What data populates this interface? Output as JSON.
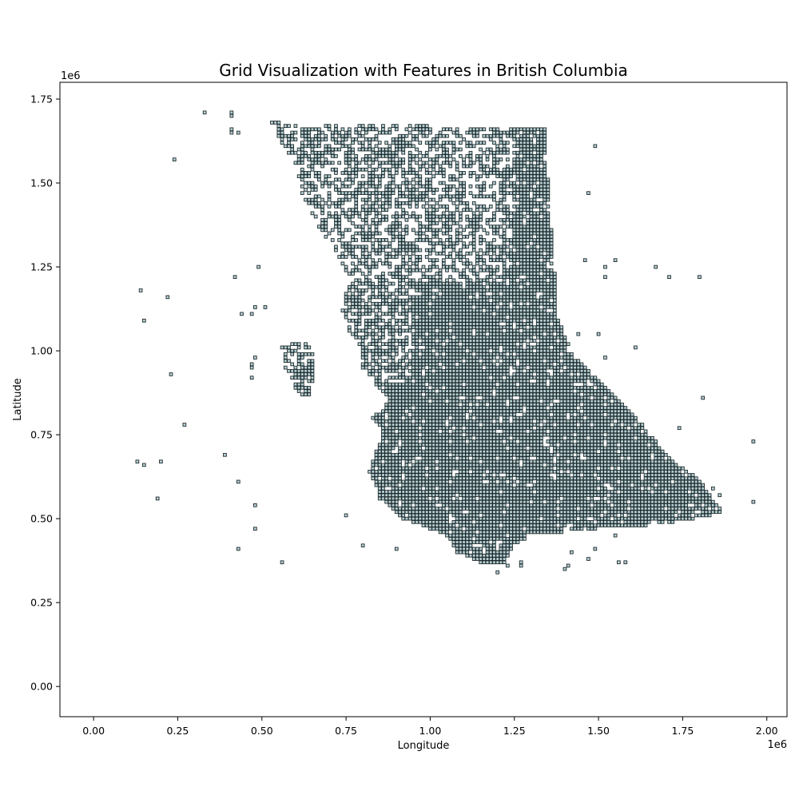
{
  "chart_data": {
    "type": "scatter",
    "title": "Grid Visualization with Features in British Columbia",
    "xlabel": "Longitude",
    "ylabel": "Latitude",
    "x_offset_label": "1e6",
    "y_offset_label": "1e6",
    "xlim": [
      -100000,
      2060000
    ],
    "ylim": [
      -90000,
      1800000
    ],
    "x_ticks": [
      0,
      250000,
      500000,
      750000,
      1000000,
      1250000,
      1500000,
      1750000,
      2000000
    ],
    "x_tick_labels": [
      "0.00",
      "0.25",
      "0.50",
      "0.75",
      "1.00",
      "1.25",
      "1.50",
      "1.75",
      "2.00"
    ],
    "y_ticks": [
      0,
      250000,
      500000,
      750000,
      1000000,
      1250000,
      1500000,
      1750000
    ],
    "y_tick_labels": [
      "0.00",
      "0.25",
      "0.50",
      "0.75",
      "1.00",
      "1.25",
      "1.50",
      "1.75"
    ],
    "grid": false,
    "cell_size": 10000,
    "marker_fill": "#a9c8cc",
    "marker_edge": "#1f2a2c",
    "dense_region": [
      [
        520000,
        1690000
      ],
      [
        560000,
        1680000
      ],
      [
        700000,
        1680000
      ],
      [
        750000,
        1660000
      ],
      [
        820000,
        1680000
      ],
      [
        1000000,
        1670000
      ],
      [
        1220000,
        1670000
      ],
      [
        1340000,
        1670000
      ],
      [
        1350000,
        1520000
      ],
      [
        1360000,
        1380000
      ],
      [
        1370000,
        1250000
      ],
      [
        1380000,
        1100000
      ],
      [
        1420000,
        1000000
      ],
      [
        1500000,
        920000
      ],
      [
        1560000,
        860000
      ],
      [
        1620000,
        800000
      ],
      [
        1680000,
        720000
      ],
      [
        1740000,
        660000
      ],
      [
        1800000,
        620000
      ],
      [
        1840000,
        560000
      ],
      [
        1870000,
        520000
      ],
      [
        1800000,
        500000
      ],
      [
        1650000,
        480000
      ],
      [
        1500000,
        470000
      ],
      [
        1300000,
        450000
      ],
      [
        1250000,
        420000
      ],
      [
        1220000,
        360000
      ],
      [
        1150000,
        370000
      ],
      [
        1080000,
        400000
      ],
      [
        1050000,
        450000
      ],
      [
        1000000,
        470000
      ],
      [
        920000,
        500000
      ],
      [
        850000,
        560000
      ],
      [
        820000,
        640000
      ],
      [
        860000,
        760000
      ],
      [
        830000,
        800000
      ],
      [
        880000,
        860000
      ],
      [
        800000,
        940000
      ],
      [
        800000,
        1000000
      ],
      [
        760000,
        1060000
      ],
      [
        740000,
        1120000
      ],
      [
        760000,
        1220000
      ],
      [
        720000,
        1300000
      ],
      [
        660000,
        1380000
      ],
      [
        620000,
        1470000
      ],
      [
        600000,
        1560000
      ],
      [
        560000,
        1620000
      ]
    ],
    "west_cluster": [
      [
        560000,
        1010000
      ],
      [
        620000,
        1030000
      ],
      [
        650000,
        1020000
      ],
      [
        660000,
        940000
      ],
      [
        640000,
        860000
      ],
      [
        600000,
        880000
      ],
      [
        570000,
        950000
      ]
    ],
    "outliers": [
      [
        330000,
        1710000
      ],
      [
        410000,
        1710000
      ],
      [
        410000,
        1700000
      ],
      [
        410000,
        1660000
      ],
      [
        410000,
        1650000
      ],
      [
        430000,
        1650000
      ],
      [
        240000,
        1570000
      ],
      [
        420000,
        1220000
      ],
      [
        490000,
        1250000
      ],
      [
        140000,
        1180000
      ],
      [
        220000,
        1160000
      ],
      [
        150000,
        1090000
      ],
      [
        440000,
        1110000
      ],
      [
        470000,
        1110000
      ],
      [
        480000,
        1130000
      ],
      [
        510000,
        1130000
      ],
      [
        230000,
        930000
      ],
      [
        470000,
        920000
      ],
      [
        470000,
        950000
      ],
      [
        470000,
        960000
      ],
      [
        480000,
        980000
      ],
      [
        270000,
        780000
      ],
      [
        390000,
        690000
      ],
      [
        130000,
        670000
      ],
      [
        150000,
        660000
      ],
      [
        200000,
        670000
      ],
      [
        430000,
        610000
      ],
      [
        190000,
        560000
      ],
      [
        480000,
        540000
      ],
      [
        480000,
        470000
      ],
      [
        430000,
        410000
      ],
      [
        560000,
        370000
      ],
      [
        750000,
        510000
      ],
      [
        800000,
        420000
      ],
      [
        900000,
        410000
      ],
      [
        1490000,
        1610000
      ],
      [
        1470000,
        1470000
      ],
      [
        1460000,
        1270000
      ],
      [
        1520000,
        1250000
      ],
      [
        1550000,
        1270000
      ],
      [
        1520000,
        1220000
      ],
      [
        1670000,
        1250000
      ],
      [
        1710000,
        1220000
      ],
      [
        1800000,
        1220000
      ],
      [
        1440000,
        1050000
      ],
      [
        1500000,
        1050000
      ],
      [
        1520000,
        980000
      ],
      [
        1610000,
        1010000
      ],
      [
        1810000,
        860000
      ],
      [
        1740000,
        770000
      ],
      [
        1960000,
        730000
      ],
      [
        1960000,
        550000
      ],
      [
        1400000,
        350000
      ],
      [
        1410000,
        360000
      ],
      [
        1420000,
        400000
      ],
      [
        1470000,
        380000
      ],
      [
        1490000,
        410000
      ],
      [
        1550000,
        450000
      ],
      [
        1560000,
        370000
      ],
      [
        1580000,
        370000
      ],
      [
        1200000,
        340000
      ],
      [
        1270000,
        360000
      ],
      [
        1270000,
        370000
      ],
      [
        1230000,
        360000
      ],
      [
        1840000,
        590000
      ],
      [
        1860000,
        570000
      ]
    ]
  }
}
